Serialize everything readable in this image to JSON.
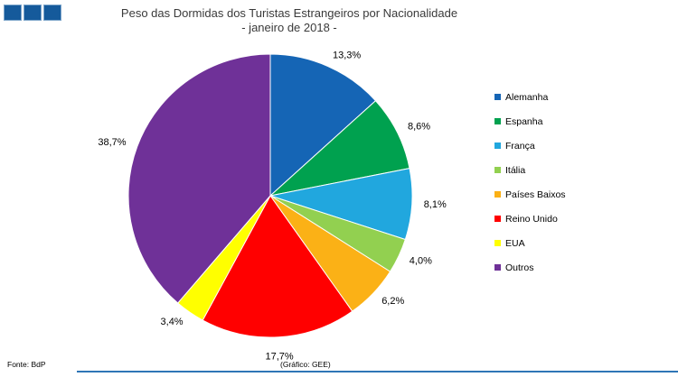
{
  "page": {
    "title": "Peso das Dormidas dos Turistas Estrangeiros por Nacionalidade",
    "subtitle": "- janeiro de 2018 -",
    "footer_left": "Fonte: BdP",
    "footer_center": "(Gráfico: GEE)"
  },
  "logo": {
    "name": "three-blue-squares",
    "fill_color": "#155A9B",
    "border_color": "#7EA6CB"
  },
  "accent_line_color": "#2E75B6",
  "chart_data": {
    "type": "pie",
    "title": "Peso das Dormidas dos Turistas Estrangeiros por Nacionalidade",
    "subtitle": "- janeiro de 2018 -",
    "categories": [
      "Alemanha",
      "Espanha",
      "França",
      "Itália",
      "Países Baixos",
      "Reino Unido",
      "EUA",
      "Outros"
    ],
    "values": [
      13.3,
      8.6,
      8.1,
      4.0,
      6.2,
      17.7,
      3.4,
      38.7
    ],
    "labels": [
      "13,3%",
      "8,6%",
      "8,1%",
      "4,0%",
      "6,2%",
      "17,7%",
      "3,4%",
      "38,7%"
    ],
    "colors": [
      "#1565B5",
      "#00A14F",
      "#21A7DE",
      "#92D050",
      "#FBB116",
      "#FF0000",
      "#FFFF00",
      "#6F3198"
    ],
    "start_angle_deg": 0,
    "direction": "clockwise",
    "legend_position": "right",
    "slice_border_color": "#FFFFFF",
    "source_note": "Fonte: BdP",
    "credit_note": "(Gráfico: GEE)"
  }
}
